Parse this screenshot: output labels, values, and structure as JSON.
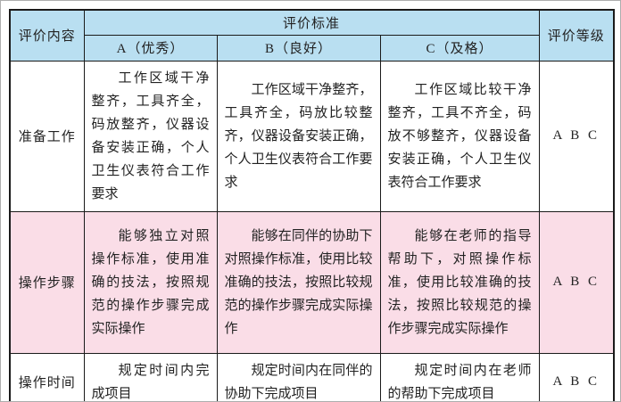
{
  "header": {
    "content_label": "评价内容",
    "standard_label": "评价标准",
    "grade_label": "评价等级",
    "sub_columns": [
      "A（优秀）",
      "B（良好）",
      "C（及格）"
    ]
  },
  "rows": [
    {
      "category": "准备工作",
      "criteria": [
        "工作区域干净整齐，工具齐全，码放整齐，仪器设备安装正确，个人卫生仪表符合工作要求",
        "工作区域干净整齐，工具齐全，码放比较整齐，仪器设备安装正确，个人卫生仪表符合工作要求",
        "工作区域比较干净整齐，工具不齐全，码放不够整齐，仪器设备安装正确，个人卫生仪表符合工作要求"
      ],
      "grade": "A B C",
      "highlighted": false
    },
    {
      "category": "操作步骤",
      "criteria": [
        "能够独立对照操作标准，使用准确的技法，按照规范的操作步骤完成实际操作",
        "能够在同伴的协助下对照操作标准，使用比较准确的技法，按照比较规范的操作步骤完成实际操作",
        "能够在老师的指导帮助下，对照操作标准，使用比较准确的技法，按照比较规范的操作步骤完成实际操作"
      ],
      "grade": "A B C",
      "highlighted": true
    },
    {
      "category": "操作时间",
      "criteria": [
        "规定时间内完成项目",
        "规定时间内在同伴的协助下完成项目",
        "规定时间内在老师的帮助下完成项目"
      ],
      "grade": "A B C",
      "highlighted": false
    }
  ],
  "colors": {
    "header_bg": "#B9DFF1",
    "highlight_bg": "#FADDE7",
    "border_color": "#1A1A1A"
  }
}
